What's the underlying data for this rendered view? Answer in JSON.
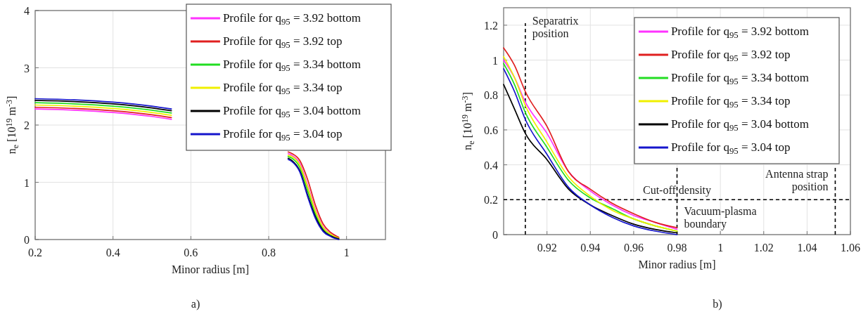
{
  "chart_data": [
    {
      "type": "line",
      "xlabel": "Minor radius [m]",
      "ylabel": "n$_{e}$ [10$^{19}$ m$^{-3}$]",
      "xlim": [
        0.2,
        1.1
      ],
      "xticks": [
        0.2,
        0.4,
        0.6,
        0.8,
        1
      ],
      "ylim": [
        0,
        4
      ],
      "yticks": [
        0,
        1,
        2,
        3,
        4
      ],
      "grid": true,
      "legend": "top right",
      "annotations": [
        "a)"
      ],
      "x": [
        0.2,
        0.3,
        0.4,
        0.5,
        0.55,
        0.6,
        0.85,
        0.86,
        0.88,
        0.9,
        0.92,
        0.94,
        0.96,
        0.98
      ],
      "series": [
        {
          "name": "Profile for q$_{95}$ = 3.92 bottom",
          "color": "#ff33ff",
          "values": [
            2.28,
            2.26,
            2.22,
            2.15,
            2.1,
            null,
            1.5,
            1.47,
            1.33,
            0.95,
            0.52,
            0.22,
            0.1,
            0.03
          ]
        },
        {
          "name": "Profile for q$_{95}$ = 3.92 top",
          "color": "#e02020",
          "values": [
            2.31,
            2.29,
            2.25,
            2.18,
            2.13,
            null,
            1.53,
            1.5,
            1.38,
            1.05,
            0.6,
            0.27,
            0.12,
            0.04
          ]
        },
        {
          "name": "Profile for q$_{95}$ = 3.34 bottom",
          "color": "#22dd22",
          "values": [
            2.39,
            2.37,
            2.33,
            2.26,
            2.21,
            null,
            1.45,
            1.42,
            1.26,
            0.86,
            0.45,
            0.19,
            0.08,
            0.02
          ]
        },
        {
          "name": "Profile for q$_{95}$ = 3.34 top",
          "color": "#f0f000",
          "values": [
            2.35,
            2.33,
            2.29,
            2.22,
            2.17,
            null,
            1.47,
            1.45,
            1.3,
            0.92,
            0.5,
            0.21,
            0.09,
            0.02
          ]
        },
        {
          "name": "Profile for q$_{95}$ = 3.04 bottom",
          "color": "#000000",
          "values": [
            2.43,
            2.41,
            2.37,
            2.3,
            2.25,
            null,
            1.42,
            1.38,
            1.2,
            0.78,
            0.4,
            0.16,
            0.06,
            0.01
          ]
        },
        {
          "name": "Profile for q$_{95}$ = 3.04 top",
          "color": "#1515cc",
          "values": [
            2.46,
            2.44,
            2.4,
            2.33,
            2.28,
            null,
            1.4,
            1.36,
            1.18,
            0.75,
            0.37,
            0.14,
            0.05,
            0
          ]
        }
      ]
    },
    {
      "type": "line",
      "xlabel": "Minor radius [m]",
      "ylabel": "n$_{e}$ [10$^{19}$ m$^{-3}$]",
      "xlim": [
        0.9,
        1.06
      ],
      "xticks": [
        0.92,
        0.94,
        0.96,
        0.98,
        1,
        1.02,
        1.04,
        1.06
      ],
      "ylim": [
        0,
        1.3
      ],
      "yticks": [
        0,
        0.2,
        0.4,
        0.6,
        0.8,
        1,
        1.2
      ],
      "grid": true,
      "legend": "top right",
      "annotations": [
        "b)"
      ],
      "ref_lines": [
        {
          "axis": "x",
          "value": 0.91,
          "label": "Separatrix position",
          "line_style": "dashed",
          "color": "#000000"
        },
        {
          "axis": "y",
          "value": 0.2,
          "label": "Cut-off density",
          "line_style": "dashed",
          "color": "#000000"
        },
        {
          "axis": "x",
          "value": 0.98,
          "label": "Vacuum-plasma boundary",
          "line_style": "dashed",
          "color": "#000000"
        },
        {
          "axis": "x",
          "value": 1.053,
          "label": "Antenna strap position",
          "line_style": "dashed",
          "color": "#000000"
        }
      ],
      "x": [
        0.9,
        0.905,
        0.91,
        0.92,
        0.93,
        0.94,
        0.95,
        0.96,
        0.97,
        0.98
      ],
      "series": [
        {
          "name": "Profile for q$_{95}$ = 3.92 bottom",
          "color": "#ff33ff",
          "values": [
            1.0,
            0.9,
            0.76,
            0.58,
            0.36,
            0.25,
            0.17,
            0.11,
            0.07,
            0.03
          ]
        },
        {
          "name": "Profile for q$_{95}$ = 3.92 top",
          "color": "#e02020",
          "values": [
            1.07,
            0.97,
            0.82,
            0.62,
            0.36,
            0.26,
            0.18,
            0.12,
            0.07,
            0.04
          ]
        },
        {
          "name": "Profile for q$_{95}$ = 3.34 bottom",
          "color": "#22dd22",
          "values": [
            0.98,
            0.86,
            0.7,
            0.5,
            0.31,
            0.21,
            0.15,
            0.09,
            0.05,
            0.02
          ]
        },
        {
          "name": "Profile for q$_{95}$ = 3.34 top",
          "color": "#f0f000",
          "values": [
            1.02,
            0.9,
            0.74,
            0.53,
            0.33,
            0.22,
            0.14,
            0.09,
            0.05,
            0.02
          ]
        },
        {
          "name": "Profile for q$_{95}$ = 3.04 bottom",
          "color": "#000000",
          "values": [
            0.86,
            0.72,
            0.58,
            0.43,
            0.26,
            0.17,
            0.11,
            0.06,
            0.03,
            0.01
          ]
        },
        {
          "name": "Profile for q$_{95}$ = 3.04 top",
          "color": "#1515cc",
          "values": [
            0.95,
            0.82,
            0.66,
            0.46,
            0.27,
            0.17,
            0.1,
            0.05,
            0.02,
            0
          ]
        }
      ]
    }
  ]
}
